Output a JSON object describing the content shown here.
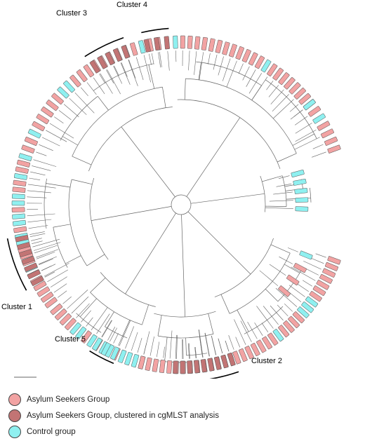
{
  "colors": {
    "asylum": "#f2a3a3",
    "clustered": "#c27474",
    "control": "#8ff0f0",
    "branch": "#666666",
    "arc": "#000000"
  },
  "cluster_labels": {
    "c1": "Cluster 1",
    "c2": "Cluster 2",
    "c3": "Cluster 3",
    "c4": "Cluster 4",
    "c5": "Cluster 5"
  },
  "legend": [
    {
      "label": "Asylum Seekers Group",
      "color": "asylum"
    },
    {
      "label": "Asylum Seekers Group, clustered in cgMLST analysis",
      "color": "clustered"
    },
    {
      "label": "Control group",
      "color": "control"
    }
  ]
}
